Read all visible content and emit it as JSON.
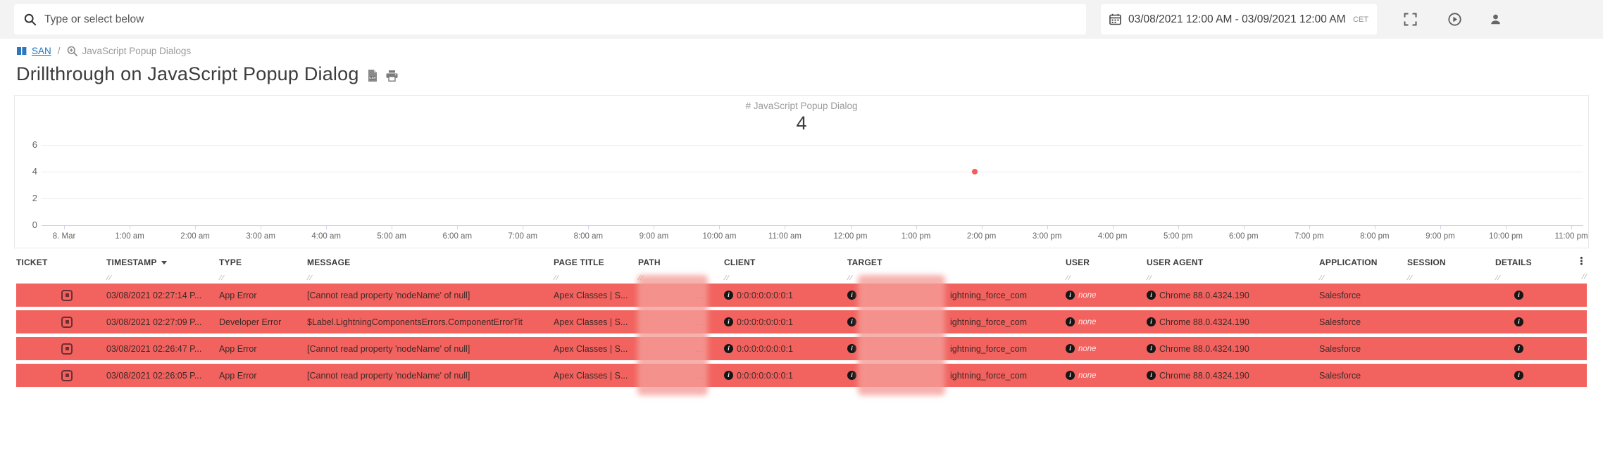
{
  "topbar": {
    "search_placeholder": "Type or select below",
    "date_range": "03/08/2021 12:00 AM - 03/09/2021 12:00 AM",
    "timezone": "CET"
  },
  "breadcrumb": {
    "root": "SAN",
    "separator": "/",
    "current": "JavaScript Popup Dialogs"
  },
  "page": {
    "title": "Drillthrough on JavaScript Popup Dialog"
  },
  "chart_data": {
    "type": "scatter",
    "title": "# JavaScript Popup Dialog",
    "total_label": "4",
    "x_ticks": [
      "8. Mar",
      "1:00 am",
      "2:00 am",
      "3:00 am",
      "4:00 am",
      "5:00 am",
      "6:00 am",
      "7:00 am",
      "8:00 am",
      "9:00 am",
      "10:00 am",
      "11:00 am",
      "12:00 pm",
      "1:00 pm",
      "2:00 pm",
      "3:00 pm",
      "4:00 pm",
      "5:00 pm",
      "6:00 pm",
      "7:00 pm",
      "8:00 pm",
      "9:00 pm",
      "10:00 pm",
      "11:00 pm"
    ],
    "y_ticks": [
      6,
      4,
      2,
      0
    ],
    "ylim": [
      0,
      6
    ],
    "grid": true,
    "legend": false,
    "point_color": "#f45b5b",
    "series": [
      {
        "name": "# JavaScript Popup Dialog",
        "points": [
          {
            "x": "2:00 pm",
            "y": 4
          }
        ]
      }
    ]
  },
  "table": {
    "columns": [
      {
        "label": "TICKET",
        "sortable": false
      },
      {
        "label": "TIMESTAMP",
        "sortable": true,
        "sorted": "desc"
      },
      {
        "label": "TYPE",
        "sortable": true
      },
      {
        "label": "MESSAGE",
        "sortable": true
      },
      {
        "label": "PAGE TITLE",
        "sortable": true
      },
      {
        "label": "PATH",
        "sortable": true
      },
      {
        "label": "CLIENT",
        "sortable": true
      },
      {
        "label": "TARGET",
        "sortable": true
      },
      {
        "label": "USER",
        "sortable": true
      },
      {
        "label": "USER AGENT",
        "sortable": true
      },
      {
        "label": "APPLICATION",
        "sortable": true
      },
      {
        "label": "SESSION",
        "sortable": true
      },
      {
        "label": "DETAILS",
        "sortable": true
      }
    ],
    "path_ellipsis": "...",
    "row_color": "#f2625f",
    "session_colors": [
      "#8d5c57",
      "#d5846c",
      "#b07f9a",
      "#d5a07e",
      "#d3ac7b",
      "#b0755f",
      "#b58099",
      "#a18a7e"
    ],
    "rows": [
      {
        "timestamp": "03/08/2021 02:27:14 P...",
        "type": "App Error",
        "message": "[Cannot read property 'nodeName' of null]",
        "page_title": "Apex Classes | S...",
        "client": "0:0:0:0:0:0:0:1",
        "target": "ightning_force_com",
        "user": "none",
        "user_agent": "Chrome 88.0.4324.190",
        "application": "Salesforce"
      },
      {
        "timestamp": "03/08/2021 02:27:09 P...",
        "type": "Developer Error",
        "message": "$Label.LightningComponentsErrors.ComponentErrorTit",
        "page_title": "Apex Classes | S...",
        "client": "0:0:0:0:0:0:0:1",
        "target": "ightning_force_com",
        "user": "none",
        "user_agent": "Chrome 88.0.4324.190",
        "application": "Salesforce"
      },
      {
        "timestamp": "03/08/2021 02:26:47 P...",
        "type": "App Error",
        "message": "[Cannot read property 'nodeName' of null]",
        "page_title": "Apex Classes | S...",
        "client": "0:0:0:0:0:0:0:1",
        "target": "ightning_force_com",
        "user": "none",
        "user_agent": "Chrome 88.0.4324.190",
        "application": "Salesforce"
      },
      {
        "timestamp": "03/08/2021 02:26:05 P...",
        "type": "App Error",
        "message": "[Cannot read property 'nodeName' of null]",
        "page_title": "Apex Classes | S...",
        "client": "0:0:0:0:0:0:0:1",
        "target": "ightning_force_com",
        "user": "none",
        "user_agent": "Chrome 88.0.4324.190",
        "application": "Salesforce"
      }
    ]
  },
  "colors": {
    "accent_blue": "#2d77bd",
    "row_red": "#f2625f",
    "point_red": "#f45b5b",
    "baseline": "#ccd6eb"
  }
}
